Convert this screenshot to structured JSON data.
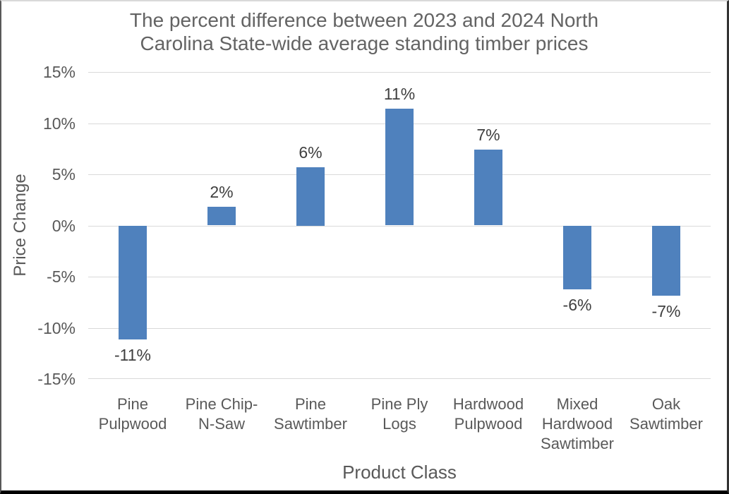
{
  "chart_data": {
    "type": "bar",
    "title": "The percent difference between 2023 and 2024 North Carolina State-wide average standing timber prices",
    "title_lines": [
      "The percent difference between 2023 and 2024 North",
      "Carolina State-wide average standing timber prices"
    ],
    "xlabel": "Product Class",
    "ylabel": "Price Change",
    "categories": [
      "Pine Pulpwood",
      "Pine Chip-N-Saw",
      "Pine Sawtimber",
      "Pine Ply Logs",
      "Hardwood Pulpwood",
      "Mixed Hardwood Sawtimber",
      "Oak Sawtimber"
    ],
    "values": [
      -11.1,
      1.8,
      5.7,
      11.4,
      7.4,
      -6.2,
      -6.8
    ],
    "data_labels": [
      "-11%",
      "2%",
      "6%",
      "11%",
      "7%",
      "-6%",
      "-7%"
    ],
    "ylim": [
      -15,
      15
    ],
    "ytick_step": 5,
    "ytick_labels": [
      "15%",
      "10%",
      "5%",
      "0%",
      "-5%",
      "-10%",
      "-15%"
    ],
    "grid": true,
    "legend": false,
    "bar_color": "#4f81bd",
    "gridline_color": "#d9d9d9",
    "axis_text_color": "#595959",
    "data_label_color": "#3f3f3f",
    "title_color": "#636363"
  }
}
